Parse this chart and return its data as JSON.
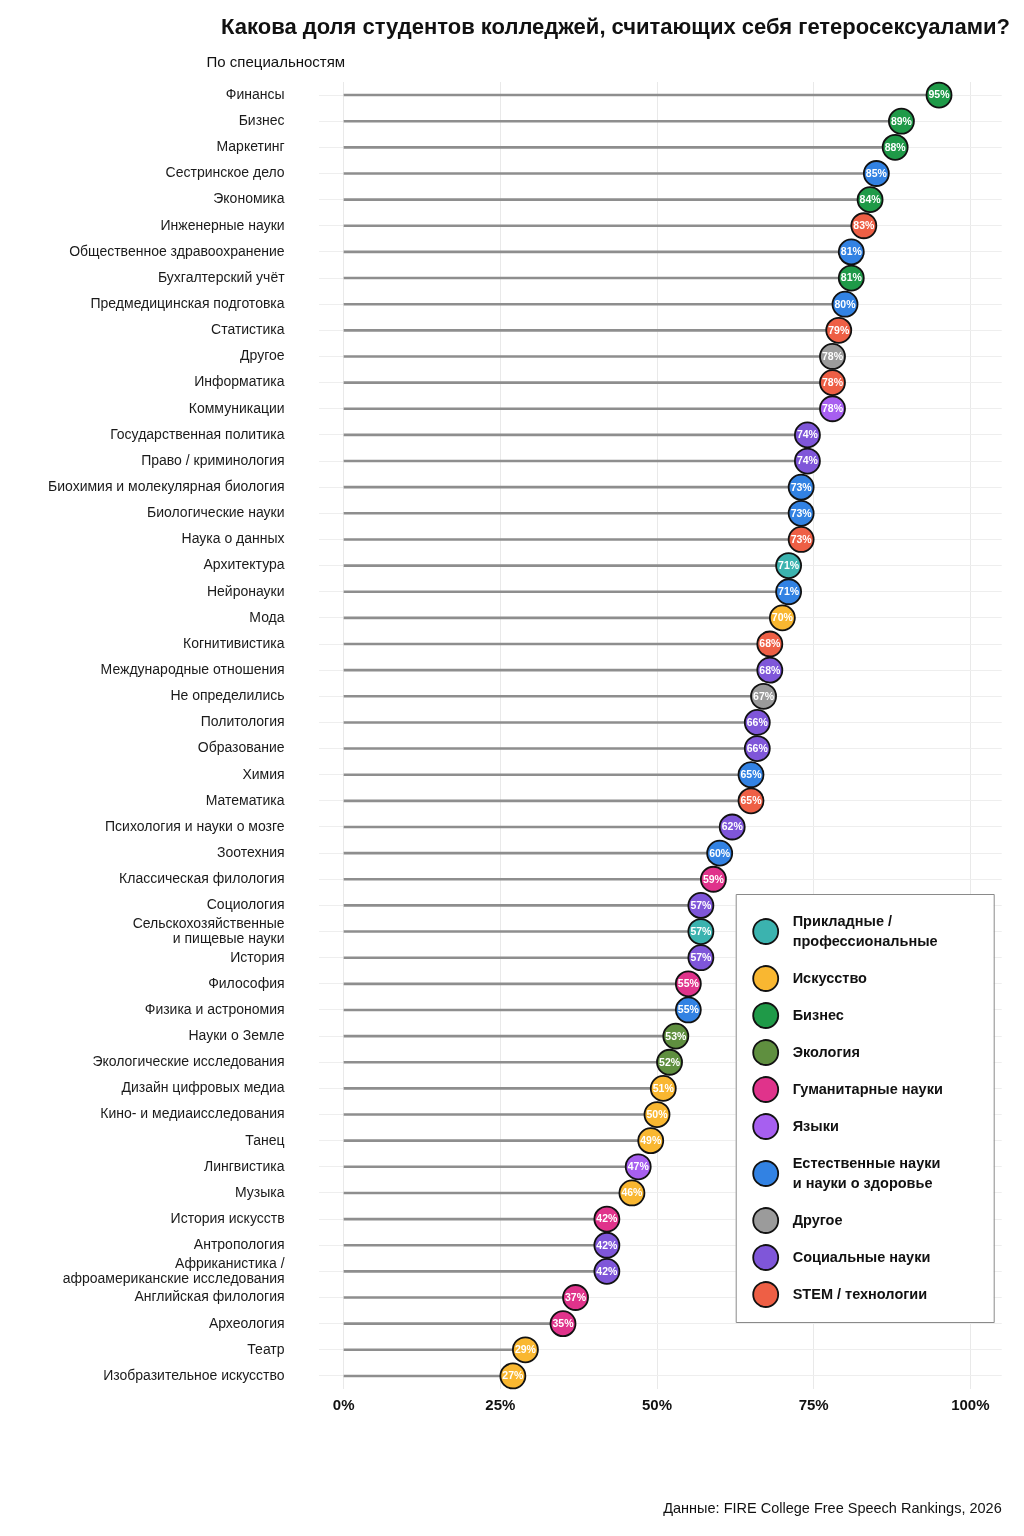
{
  "chart_data": {
    "type": "lollipop",
    "orientation": "horizontal",
    "title": "Какова доля студентов колледжей, считающих себя гетеросексуалами?",
    "subtitle": "По специальностям",
    "categories": [
      "Финансы",
      "Бизнес",
      "Маркетинг",
      "Сестринское дело",
      "Экономика",
      "Инженерные науки",
      "Общественное здравоохранение",
      "Бухгалтерский учёт",
      "Предмедицинская подготовка",
      "Статистика",
      "Другое",
      "Информатика",
      "Коммуникации",
      "Государственная политика",
      "Право / криминология",
      "Биохимия и молекулярная биология",
      "Биологические науки",
      "Наука о данных",
      "Архитектура",
      "Нейронауки",
      "Мода",
      "Когнитивистика",
      "Международные отношения",
      "Не определились",
      "Политология",
      "Образование",
      "Химия",
      "Математика",
      "Психология и науки о мозге",
      "Зоотехния",
      "Классическая филология",
      "Социология",
      "Сельскохозяйственные\nи пищевые науки",
      "История",
      "Философия",
      "Физика и астрономия",
      "Науки о Земле",
      "Экологические исследования",
      "Дизайн цифровых медиа",
      "Кино- и медиаисследования",
      "Танец",
      "Лингвистика",
      "Музыка",
      "История искусств",
      "Антропология",
      "Африканистика /\nафроамериканские исследования",
      "Английская филология",
      "Археология",
      "Театр",
      "Изобразительное искусство"
    ],
    "series": [
      {
        "name": "Прикладные /\nпрофессиональные",
        "color": "#3bb3af",
        "values": [
          null,
          null,
          null,
          null,
          null,
          null,
          null,
          null,
          null,
          null,
          null,
          null,
          null,
          null,
          null,
          null,
          null,
          null,
          71,
          null,
          null,
          null,
          null,
          null,
          null,
          null,
          null,
          null,
          null,
          null,
          null,
          null,
          57,
          null,
          null,
          null,
          null,
          null,
          null,
          null,
          null,
          null,
          null,
          null,
          null,
          null,
          null,
          null,
          null,
          null
        ],
        "value_labels": [
          null,
          null,
          null,
          null,
          null,
          null,
          null,
          null,
          null,
          null,
          null,
          null,
          null,
          null,
          null,
          null,
          null,
          null,
          "71%",
          null,
          null,
          null,
          null,
          null,
          null,
          null,
          null,
          null,
          null,
          null,
          null,
          null,
          "57%",
          null,
          null,
          null,
          null,
          null,
          null,
          null,
          null,
          null,
          null,
          null,
          null,
          null,
          null,
          null,
          null,
          null
        ]
      },
      {
        "name": "Искусство",
        "color": "#f9b731",
        "values": [
          null,
          null,
          null,
          null,
          null,
          null,
          null,
          null,
          null,
          null,
          null,
          null,
          null,
          null,
          null,
          null,
          null,
          null,
          null,
          null,
          70,
          null,
          null,
          null,
          null,
          null,
          null,
          null,
          null,
          null,
          null,
          null,
          null,
          null,
          null,
          null,
          null,
          null,
          51,
          50,
          49,
          null,
          46,
          null,
          null,
          null,
          null,
          null,
          29,
          27
        ],
        "value_labels": [
          null,
          null,
          null,
          null,
          null,
          null,
          null,
          null,
          null,
          null,
          null,
          null,
          null,
          null,
          null,
          null,
          null,
          null,
          null,
          null,
          "70%",
          null,
          null,
          null,
          null,
          null,
          null,
          null,
          null,
          null,
          null,
          null,
          null,
          null,
          null,
          null,
          null,
          null,
          "51%",
          "50%",
          "49%",
          null,
          "46%",
          null,
          null,
          null,
          null,
          null,
          "29%",
          "27%"
        ]
      },
      {
        "name": "Бизнес",
        "color": "#1f9a48",
        "values": [
          95,
          89,
          88,
          null,
          84,
          null,
          null,
          81,
          null,
          null,
          null,
          null,
          null,
          null,
          null,
          null,
          null,
          null,
          null,
          null,
          null,
          null,
          null,
          null,
          null,
          null,
          null,
          null,
          null,
          null,
          null,
          null,
          null,
          null,
          null,
          null,
          null,
          null,
          null,
          null,
          null,
          null,
          null,
          null,
          null,
          null,
          null,
          null,
          null,
          null
        ],
        "value_labels": [
          "95%",
          "89%",
          "88%",
          null,
          "84%",
          null,
          null,
          "81%",
          null,
          null,
          null,
          null,
          null,
          null,
          null,
          null,
          null,
          null,
          null,
          null,
          null,
          null,
          null,
          null,
          null,
          null,
          null,
          null,
          null,
          null,
          null,
          null,
          null,
          null,
          null,
          null,
          null,
          null,
          null,
          null,
          null,
          null,
          null,
          null,
          null,
          null,
          null,
          null,
          null,
          null
        ]
      },
      {
        "name": "Экология",
        "color": "#5f8f3f",
        "values": [
          null,
          null,
          null,
          null,
          null,
          null,
          null,
          null,
          null,
          null,
          null,
          null,
          null,
          null,
          null,
          null,
          null,
          null,
          null,
          null,
          null,
          null,
          null,
          null,
          null,
          null,
          null,
          null,
          null,
          null,
          null,
          null,
          null,
          null,
          null,
          null,
          53,
          52,
          null,
          null,
          null,
          null,
          null,
          null,
          null,
          null,
          null,
          null,
          null,
          null
        ],
        "value_labels": [
          null,
          null,
          null,
          null,
          null,
          null,
          null,
          null,
          null,
          null,
          null,
          null,
          null,
          null,
          null,
          null,
          null,
          null,
          null,
          null,
          null,
          null,
          null,
          null,
          null,
          null,
          null,
          null,
          null,
          null,
          null,
          null,
          null,
          null,
          null,
          null,
          "53%",
          "52%",
          null,
          null,
          null,
          null,
          null,
          null,
          null,
          null,
          null,
          null,
          null,
          null
        ]
      },
      {
        "name": "Гуманитарные науки",
        "color": "#e0338b",
        "values": [
          null,
          null,
          null,
          null,
          null,
          null,
          null,
          null,
          null,
          null,
          null,
          null,
          null,
          null,
          null,
          null,
          null,
          null,
          null,
          null,
          null,
          null,
          null,
          null,
          null,
          null,
          null,
          null,
          null,
          null,
          59,
          null,
          null,
          null,
          55,
          null,
          null,
          null,
          null,
          null,
          null,
          null,
          null,
          42,
          null,
          null,
          37,
          35,
          null,
          null
        ],
        "value_labels": [
          null,
          null,
          null,
          null,
          null,
          null,
          null,
          null,
          null,
          null,
          null,
          null,
          null,
          null,
          null,
          null,
          null,
          null,
          null,
          null,
          null,
          null,
          null,
          null,
          null,
          null,
          null,
          null,
          null,
          null,
          "59%",
          null,
          null,
          null,
          "55%",
          null,
          null,
          null,
          null,
          null,
          null,
          null,
          null,
          "42%",
          null,
          null,
          "37%",
          "35%",
          null,
          null
        ]
      },
      {
        "name": "Языки",
        "color": "#a75ff0",
        "values": [
          null,
          null,
          null,
          null,
          null,
          null,
          null,
          null,
          null,
          null,
          null,
          null,
          78,
          null,
          null,
          null,
          null,
          null,
          null,
          null,
          null,
          null,
          null,
          null,
          null,
          null,
          null,
          null,
          null,
          null,
          null,
          null,
          null,
          null,
          null,
          null,
          null,
          null,
          null,
          null,
          null,
          47,
          null,
          null,
          null,
          null,
          null,
          null,
          null,
          null
        ],
        "value_labels": [
          null,
          null,
          null,
          null,
          null,
          null,
          null,
          null,
          null,
          null,
          null,
          null,
          "78%",
          null,
          null,
          null,
          null,
          null,
          null,
          null,
          null,
          null,
          null,
          null,
          null,
          null,
          null,
          null,
          null,
          null,
          null,
          null,
          null,
          null,
          null,
          null,
          null,
          null,
          null,
          null,
          null,
          "47%",
          null,
          null,
          null,
          null,
          null,
          null,
          null,
          null
        ]
      },
      {
        "name": "Естественные науки\nи науки о здоровье",
        "color": "#3282e3",
        "values": [
          null,
          null,
          null,
          85,
          null,
          null,
          81,
          null,
          80,
          null,
          null,
          null,
          null,
          null,
          null,
          73,
          73,
          null,
          null,
          71,
          null,
          null,
          null,
          null,
          null,
          null,
          65,
          null,
          null,
          60,
          null,
          null,
          null,
          null,
          null,
          55,
          null,
          null,
          null,
          null,
          null,
          null,
          null,
          null,
          null,
          null,
          null,
          null,
          null,
          null
        ],
        "value_labels": [
          null,
          null,
          null,
          "85%",
          null,
          null,
          "81%",
          null,
          "80%",
          null,
          null,
          null,
          null,
          null,
          null,
          "73%",
          "73%",
          null,
          null,
          "71%",
          null,
          null,
          null,
          null,
          null,
          null,
          "65%",
          null,
          null,
          "60%",
          null,
          null,
          null,
          null,
          null,
          "55%",
          null,
          null,
          null,
          null,
          null,
          null,
          null,
          null,
          null,
          null,
          null,
          null,
          null,
          null
        ]
      },
      {
        "name": "Другое",
        "color": "#9b9b9b",
        "values": [
          null,
          null,
          null,
          null,
          null,
          null,
          null,
          null,
          null,
          null,
          78,
          null,
          null,
          null,
          null,
          null,
          null,
          null,
          null,
          null,
          null,
          null,
          null,
          67,
          null,
          null,
          null,
          null,
          null,
          null,
          null,
          null,
          null,
          null,
          null,
          null,
          null,
          null,
          null,
          null,
          null,
          null,
          null,
          null,
          null,
          null,
          null,
          null,
          null,
          null
        ],
        "value_labels": [
          null,
          null,
          null,
          null,
          null,
          null,
          null,
          null,
          null,
          null,
          "78%",
          null,
          null,
          null,
          null,
          null,
          null,
          null,
          null,
          null,
          null,
          null,
          null,
          "67%",
          null,
          null,
          null,
          null,
          null,
          null,
          null,
          null,
          null,
          null,
          null,
          null,
          null,
          null,
          null,
          null,
          null,
          null,
          null,
          null,
          null,
          null,
          null,
          null,
          null,
          null
        ]
      },
      {
        "name": "Социальные науки",
        "color": "#7f56d9",
        "values": [
          null,
          null,
          null,
          null,
          null,
          null,
          null,
          null,
          null,
          null,
          null,
          null,
          null,
          74,
          74,
          null,
          null,
          null,
          null,
          null,
          null,
          null,
          68,
          null,
          66,
          66,
          null,
          null,
          62,
          null,
          null,
          57,
          null,
          57,
          null,
          null,
          null,
          null,
          null,
          null,
          null,
          null,
          null,
          null,
          42,
          42,
          null,
          null,
          null,
          null
        ],
        "value_labels": [
          null,
          null,
          null,
          null,
          null,
          null,
          null,
          null,
          null,
          null,
          null,
          null,
          null,
          "74%",
          "74%",
          null,
          null,
          null,
          null,
          null,
          null,
          null,
          "68%",
          null,
          "66%",
          "66%",
          null,
          null,
          "62%",
          null,
          null,
          "57%",
          null,
          "57%",
          null,
          null,
          null,
          null,
          null,
          null,
          null,
          null,
          null,
          null,
          "42%",
          "42%",
          null,
          null,
          null,
          null
        ]
      },
      {
        "name": "STEM / технологии",
        "color": "#ee5f45",
        "values": [
          null,
          null,
          null,
          null,
          null,
          83,
          null,
          null,
          null,
          79,
          null,
          78,
          null,
          null,
          null,
          null,
          null,
          73,
          null,
          null,
          null,
          68,
          null,
          null,
          null,
          null,
          null,
          65,
          null,
          null,
          null,
          null,
          null,
          null,
          null,
          null,
          null,
          null,
          null,
          null,
          null,
          null,
          null,
          null,
          null,
          null,
          null,
          null,
          null,
          null
        ],
        "value_labels": [
          null,
          null,
          null,
          null,
          null,
          "83%",
          null,
          null,
          null,
          "79%",
          null,
          "78%",
          null,
          null,
          null,
          null,
          null,
          "73%",
          null,
          null,
          null,
          "68%",
          null,
          null,
          null,
          null,
          null,
          "65%",
          null,
          null,
          null,
          null,
          null,
          null,
          null,
          null,
          null,
          null,
          null,
          null,
          null,
          null,
          null,
          null,
          null,
          null,
          null,
          null,
          null,
          null
        ]
      }
    ],
    "xlim": [
      -4,
      105
    ],
    "xticks": [
      {
        "value": 0,
        "label": "0%"
      },
      {
        "value": 25,
        "label": "25%"
      },
      {
        "value": 50,
        "label": "50%"
      },
      {
        "value": 75,
        "label": "75%"
      },
      {
        "value": 100,
        "label": "100%"
      }
    ],
    "grid": true,
    "legend": "bottom right",
    "marker": "circle",
    "annotations": [
      "Данные: FIRE College Free Speech Rankings, 2026"
    ]
  }
}
